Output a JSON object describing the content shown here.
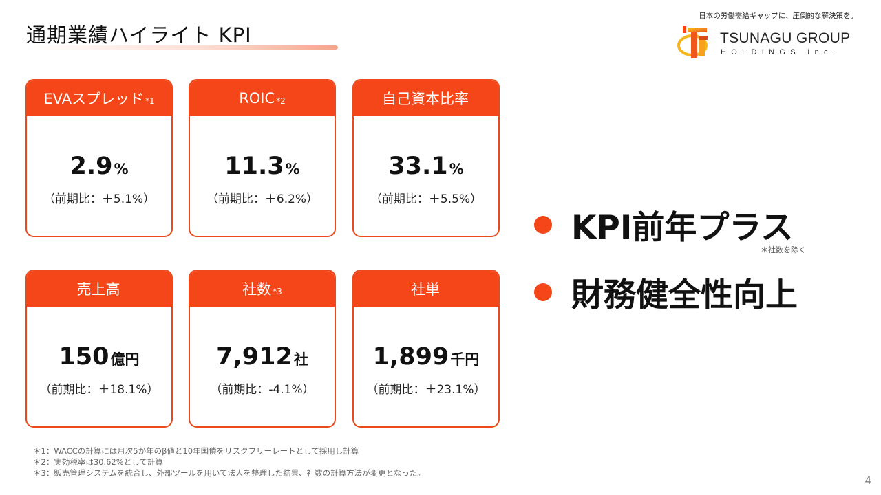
{
  "header": {
    "title": "通期業績ハイライト KPI",
    "tagline": "日本の労働需給ギャップに、圧倒的な解決策を。"
  },
  "logo": {
    "name": "TSUNAGU GROUP",
    "sub": "HOLDINGS Inc."
  },
  "kpis": [
    {
      "label": "EVAスプレッド",
      "note": "*1",
      "value": "2.9",
      "unit": "%",
      "change": "（前期比：＋5.1%）"
    },
    {
      "label": "ROIC",
      "note": "*2",
      "value": "11.3",
      "unit": "%",
      "change": "（前期比：＋6.2%）"
    },
    {
      "label": "自己資本比率",
      "note": "",
      "value": "33.1",
      "unit": "%",
      "change": "（前期比：＋5.5%）"
    },
    {
      "label": "売上高",
      "note": "",
      "value": "150",
      "unit": "億円",
      "change": "（前期比：＋18.1%）"
    },
    {
      "label": "社数",
      "note": "*3",
      "value": "7,912",
      "unit": "社",
      "change": "（前期比：-4.1%）"
    },
    {
      "label": "社単",
      "note": "",
      "value": "1,899",
      "unit": "千円",
      "change": "（前期比：＋23.1%）"
    }
  ],
  "highlights": [
    {
      "text": "KPI前年プラス"
    },
    {
      "text": "財務健全性向上"
    }
  ],
  "highlight_note": "＊社数を除く",
  "footnotes": [
    "＊1：WACCの計算には月次5か年のβ値と10年国債をリスクフリーレートとして採用し計算",
    "＊2：実効税率は30.62%として計算",
    "＊3：販売管理システムを統合し、外部ツールを用いて法人を整理した結果、社数の計算方法が変更となった。"
  ],
  "page_number": "4",
  "colors": {
    "accent": "#f5461a",
    "border": "#ec4a1c"
  }
}
